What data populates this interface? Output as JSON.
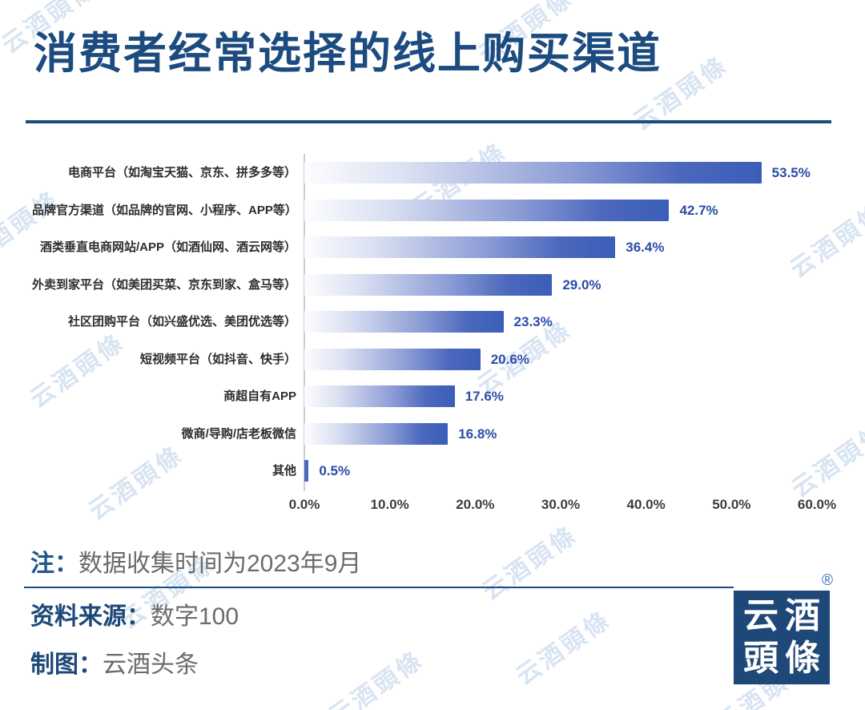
{
  "title": "消费者经常选择的线上购买渠道",
  "watermark": {
    "text": "云酒頭條"
  },
  "chart_data": {
    "type": "bar",
    "orientation": "horizontal",
    "title": "消费者经常选择的线上购买渠道",
    "categories": [
      "电商平台（如淘宝天猫、京东、拼多多等）",
      "品牌官方渠道（如品牌的官网、小程序、APP等）",
      "酒类垂直电商网站/APP（如酒仙网、酒云网等）",
      "外卖到家平台（如美团买菜、京东到家、盒马等）",
      "社区团购平台（如兴盛优选、美团优选等）",
      "短视频平台（如抖音、快手）",
      "商超自有APP",
      "微商/导购/店老板微信",
      "其他"
    ],
    "values": [
      53.5,
      42.7,
      36.4,
      29.0,
      23.3,
      20.6,
      17.6,
      16.8,
      0.5
    ],
    "value_labels": [
      "53.5%",
      "42.7%",
      "36.4%",
      "29.0%",
      "23.3%",
      "20.6%",
      "17.6%",
      "16.8%",
      "0.5%"
    ],
    "xlabel": "",
    "ylabel": "",
    "xlim": [
      0,
      60
    ],
    "x_ticks": [
      "0.0%",
      "10.0%",
      "20.0%",
      "30.0%",
      "40.0%",
      "50.0%",
      "60.0%"
    ],
    "grid": false,
    "legend": false,
    "bar_gradient_start": "#fdfdff",
    "bar_gradient_end": "#3a5eb8"
  },
  "footer": {
    "note_label": "注：",
    "note_text": "数据收集时间为2023年9月",
    "source_label": "资料来源：",
    "source_text": "数字100",
    "credit_label": "制图：",
    "credit_text": "云酒头条"
  },
  "logo": {
    "char_top_left": "云",
    "char_top_right": "酒",
    "char_bottom_left": "頭",
    "char_bottom_right": "條",
    "registered_mark": "®"
  },
  "colors": {
    "title_navy": "#1c4b7f",
    "bar_end_blue": "#3a5eb8",
    "value_label_blue": "#2b4da6",
    "tick_label_gray": "#3d3d3d",
    "footer_gray": "#6b6b6b",
    "logo_bg": "#1d4878",
    "watermark_blue": "#b9cfe9"
  }
}
